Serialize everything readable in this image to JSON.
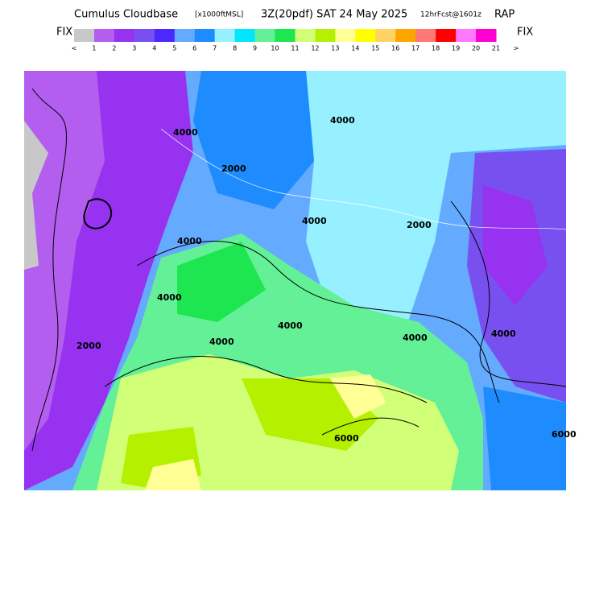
{
  "header": {
    "title": "Cumulus Cloudbase",
    "units": "[x1000ftMSL]",
    "valid": "3Z(20pdf) SAT 24 May 2025",
    "forecast": "12hrFcst@1601z",
    "model": "RAP"
  },
  "legend": {
    "left_label": "FIX",
    "right_label": "FIX",
    "ticks": [
      "<",
      "1",
      "2",
      "3",
      "4",
      "5",
      "6",
      "7",
      "8",
      "9",
      "10",
      "11",
      "12",
      "13",
      "14",
      "15",
      "16",
      "17",
      "18",
      "19",
      "20",
      "21",
      ">"
    ],
    "colors": [
      "#c8c8c8",
      "#b45ef0",
      "#9632f0",
      "#7850f0",
      "#4b28ff",
      "#64aaff",
      "#1e8cff",
      "#96f0ff",
      "#00e6ff",
      "#64f096",
      "#1ee650",
      "#d2ff78",
      "#b4f000",
      "#ffff96",
      "#ffff00",
      "#ffd264",
      "#ffa500",
      "#ff7878",
      "#ff0000",
      "#ff78ff",
      "#ff00d2"
    ]
  },
  "map": {
    "contour_labels": [
      "4000",
      "2000",
      "4000",
      "4000",
      "2000",
      "4000",
      "4000",
      "4000",
      "4000",
      "4000",
      "2000",
      "4000",
      "6000",
      "6000"
    ]
  }
}
